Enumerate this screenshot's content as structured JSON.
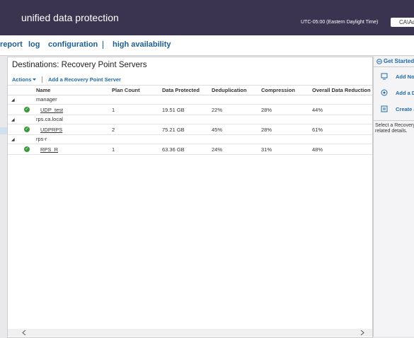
{
  "header": {
    "title": "unified data protection",
    "timezone": "UTC-05:00 (Eastern Daylight Time)",
    "user": "CA\\Ad"
  },
  "nav": {
    "items": [
      "report",
      "log",
      "configuration",
      "high availability"
    ]
  },
  "main": {
    "title": "Destinations: Recovery Point Servers",
    "toolbar": {
      "actions": "Actions",
      "add": "Add a Recovery Point Server"
    },
    "table": {
      "columns": [
        "Name",
        "Plan Count",
        "Data Protected",
        "Deduplication",
        "Compression",
        "Overall Data Reduction"
      ],
      "groups": [
        {
          "name": "manager",
          "rows": [
            [
              "UDP_test",
              "1",
              "19.51 GB",
              "22%",
              "28%",
              "44%"
            ]
          ]
        },
        {
          "name": "rps.ca.local",
          "rows": [
            [
              "UDPRPS",
              "2",
              "75.21 GB",
              "45%",
              "28%",
              "61%"
            ]
          ]
        },
        {
          "name": "rps-r",
          "rows": [
            [
              "RPS_R",
              "1",
              "63.36 GB",
              "24%",
              "31%",
              "48%"
            ]
          ]
        }
      ]
    }
  },
  "side": {
    "title": "Get Started",
    "items": [
      "Add Nod",
      "Add a D",
      "Create a"
    ],
    "note": [
      "Select a Recovery",
      "related details."
    ]
  }
}
